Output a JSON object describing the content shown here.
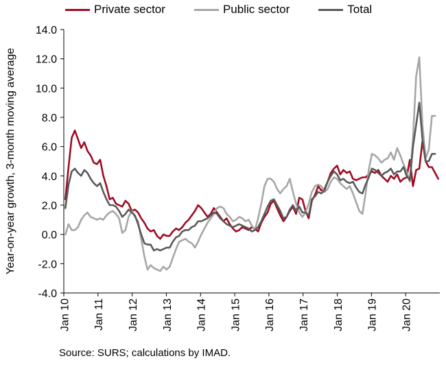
{
  "chart_data": {
    "type": "line",
    "ylabel": "Year-on-year growth, 3-month moving average",
    "xlabel": "",
    "ylim": [
      -4.0,
      14.0
    ],
    "yticks": [
      "14.0",
      "12.0",
      "10.0",
      "8.0",
      "6.0",
      "4.0",
      "2.0",
      "0.0",
      "-2.0",
      "-4.0"
    ],
    "ytick_values": [
      14,
      12,
      10,
      8,
      6,
      4,
      2,
      0,
      -2,
      -4
    ],
    "x_ticks": [
      "Jan 10",
      "Jan 11",
      "Jan 12",
      "Jan 13",
      "Jan 14",
      "Jan 15",
      "Jan 16",
      "Jan 17",
      "Jan 18",
      "Jan 19",
      "Jan 20"
    ],
    "x_start": "Jan 10",
    "frequency": "monthly",
    "grid": false,
    "legend_position": "top",
    "series": [
      {
        "name": "Private sector",
        "color": "#9e0b22",
        "values": [
          2.4,
          4.6,
          6.6,
          7.1,
          6.5,
          5.9,
          6.3,
          5.7,
          5.4,
          4.9,
          4.8,
          5.1,
          4.0,
          3.3,
          2.4,
          2.5,
          2.1,
          2.0,
          1.9,
          2.3,
          2.1,
          1.6,
          1.7,
          1.5,
          1.1,
          0.8,
          0.4,
          0.2,
          0.3,
          -0.1,
          -0.3,
          0.0,
          -0.1,
          -0.1,
          0.2,
          0.4,
          0.3,
          0.5,
          0.8,
          1.0,
          1.3,
          1.6,
          2.0,
          1.8,
          1.5,
          1.2,
          1.4,
          1.8,
          1.5,
          1.2,
          0.9,
          1.1,
          0.7,
          0.4,
          0.2,
          0.3,
          0.5,
          0.4,
          0.3,
          0.5,
          0.4,
          0.2,
          0.8,
          1.2,
          1.5,
          2.1,
          2.3,
          1.8,
          1.3,
          0.9,
          1.2,
          1.6,
          1.9,
          1.4,
          2.5,
          2.4,
          1.6,
          1.1,
          2.3,
          2.7,
          3.3,
          3.0,
          3.1,
          3.6,
          4.2,
          4.5,
          4.7,
          4.1,
          4.4,
          4.2,
          4.3,
          3.8,
          3.7,
          3.8,
          3.9,
          3.9,
          4.1,
          4.3,
          4.2,
          4.4,
          4.0,
          3.8,
          3.6,
          4.0,
          3.8,
          4.1,
          3.6,
          3.8,
          3.9,
          5.1,
          3.3,
          4.4,
          4.5,
          6.4,
          5.0,
          4.6,
          4.6,
          4.2,
          3.8
        ]
      },
      {
        "name": "Public sector",
        "color": "#a6a6a6",
        "values": [
          0.0,
          0.7,
          0.3,
          0.3,
          0.5,
          1.0,
          1.3,
          1.5,
          1.2,
          1.1,
          1.0,
          1.1,
          1.0,
          1.3,
          1.5,
          1.6,
          1.4,
          1.1,
          0.1,
          0.3,
          1.2,
          1.6,
          1.2,
          0.9,
          -0.3,
          -1.5,
          -2.4,
          -2.1,
          -2.3,
          -2.4,
          -2.5,
          -2.2,
          -2.4,
          -2.2,
          -1.6,
          -1.0,
          -0.5,
          -0.4,
          -0.3,
          -0.5,
          -0.6,
          -0.9,
          -0.5,
          0.0,
          0.4,
          0.8,
          1.1,
          1.4,
          1.8,
          1.9,
          1.8,
          1.4,
          1.2,
          0.9,
          1.0,
          1.2,
          1.1,
          0.9,
          1.0,
          0.6,
          0.3,
          1.1,
          2.1,
          3.3,
          3.8,
          3.8,
          3.6,
          3.1,
          2.8,
          3.1,
          3.3,
          3.8,
          2.9,
          2.1,
          1.5,
          1.2,
          1.5,
          2.1,
          2.9,
          3.3,
          3.4,
          3.3,
          2.9,
          3.1,
          3.6,
          3.9,
          3.8,
          3.5,
          3.3,
          3.1,
          3.3,
          2.8,
          2.2,
          1.6,
          1.4,
          2.8,
          4.4,
          5.5,
          5.4,
          5.2,
          4.9,
          5.1,
          5.2,
          5.6,
          5.1,
          5.9,
          5.4,
          4.8,
          4.3,
          3.6,
          6.6,
          10.8,
          12.1,
          7.5,
          5.2,
          5.8,
          8.1,
          8.1
        ]
      },
      {
        "name": "Total",
        "color": "#595959",
        "values": [
          1.8,
          3.4,
          4.3,
          4.5,
          4.2,
          4.0,
          4.4,
          4.2,
          3.8,
          3.5,
          3.3,
          3.5,
          2.9,
          2.4,
          2.0,
          2.0,
          1.9,
          1.6,
          1.2,
          1.4,
          1.7,
          1.5,
          1.3,
          0.7,
          0.0,
          -0.6,
          -0.7,
          -0.7,
          -1.1,
          -1.0,
          -1.1,
          -1.0,
          -0.9,
          -0.9,
          -0.5,
          -0.2,
          -0.1,
          0.2,
          0.3,
          0.3,
          0.5,
          0.6,
          0.9,
          0.9,
          1.0,
          1.1,
          1.3,
          1.5,
          1.4,
          1.1,
          0.9,
          0.7,
          0.6,
          0.5,
          0.6,
          0.7,
          0.6,
          0.5,
          0.4,
          0.2,
          0.3,
          0.5,
          0.9,
          1.4,
          1.9,
          2.3,
          2.4,
          2.0,
          1.6,
          1.1,
          1.2,
          1.7,
          2.0,
          1.6,
          1.9,
          1.5,
          1.5,
          1.3,
          2.4,
          2.6,
          2.9,
          2.8,
          3.0,
          3.6,
          4.0,
          4.3,
          4.1,
          3.7,
          3.8,
          3.6,
          3.5,
          3.6,
          3.2,
          2.9,
          2.8,
          3.4,
          3.9,
          4.5,
          4.4,
          4.2,
          4.0,
          4.2,
          4.3,
          4.5,
          4.1,
          4.3,
          4.3,
          4.6,
          4.0,
          3.7,
          6.0,
          7.5,
          9.0,
          6.5,
          5.0,
          5.0,
          5.5,
          5.5
        ]
      }
    ]
  },
  "source": "Source: SURS; calculations by IMAD."
}
